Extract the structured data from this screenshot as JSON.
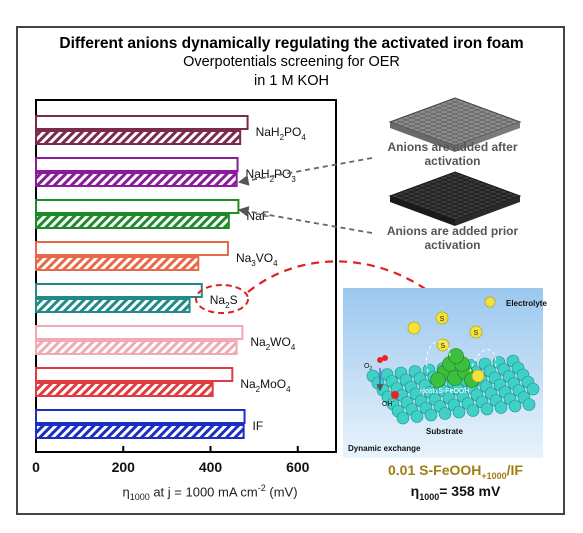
{
  "title": "Different anions dynamically regulating the activated iron foam",
  "subtitle_line1": "Overpotentials screening for OER",
  "subtitle_line2": "in 1 M KOH",
  "chart_data": {
    "type": "bar",
    "orientation": "horizontal",
    "categories": [
      "NaH2PO4",
      "NaH2PO3",
      "NaF",
      "Na3VO4",
      "Na2S",
      "Na2WO4",
      "Na2MoO4",
      "IF"
    ],
    "series": [
      {
        "name": "Anions are added after activation",
        "style": "open",
        "values": [
          485,
          462,
          464,
          440,
          380,
          473,
          450,
          478
        ]
      },
      {
        "name": "Anions are added prior activation",
        "style": "hatched",
        "values": [
          468,
          460,
          442,
          372,
          352,
          460,
          405,
          476
        ]
      }
    ],
    "colors": [
      "#7b2a4e",
      "#8a1c9c",
      "#1f8a2a",
      "#e8684a",
      "#1f8a86",
      "#f2a9b5",
      "#e03a42",
      "#1c2ec4"
    ],
    "xticks": [
      0,
      200,
      400,
      600
    ],
    "xlim": [
      0,
      700
    ],
    "xlabel": "η1000 at j = 1000 mA cm-2 (mV)",
    "legend": "none",
    "grid": false
  },
  "labels": {
    "NaH2PO4": {
      "main": "NaH",
      "s1": "2",
      "mid": "PO",
      "s2": "4"
    },
    "NaH2PO3": {
      "main": "NaH",
      "s1": "2",
      "mid": "PO",
      "s2": "3"
    },
    "NaF": {
      "main": "NaF"
    },
    "Na3VO4": {
      "main": "Na",
      "s1": "3",
      "mid": "VO",
      "s2": "4"
    },
    "Na2S": {
      "main": "Na",
      "s1": "2",
      "mid": "S"
    },
    "Na2WO4": {
      "main": "Na",
      "s1": "2",
      "mid": "WO",
      "s2": "4"
    },
    "Na2MoO4": {
      "main": "Na",
      "s1": "2",
      "mid": "MoO",
      "s2": "4"
    },
    "IF": {
      "main": "IF"
    }
  },
  "xlabel_parts": {
    "eta": "η",
    "eta_sub": "1000",
    "rest": " at j = 1000 mA cm",
    "sup": "-2",
    "unit": "  (mV)"
  },
  "notes": {
    "after": "Anions are added after activation",
    "prior": "Anions are added prior activation"
  },
  "inset": {
    "electrolyte": "Electrolyte",
    "host": "Host: S-FeOOH",
    "substrate": "Substrate",
    "dynamic": "Dynamic exchange",
    "s_label": "S",
    "o2": "O",
    "o2_sub": "2",
    "oh": "OH",
    "oh_sup": "-"
  },
  "result": {
    "line1_pre": "0.01 S-FeOOH",
    "line1_sub": "+1000",
    "line1_post": "/IF",
    "line2_eta": "η",
    "line2_sub": "1000",
    "line2_rest": "= 358 mV"
  }
}
